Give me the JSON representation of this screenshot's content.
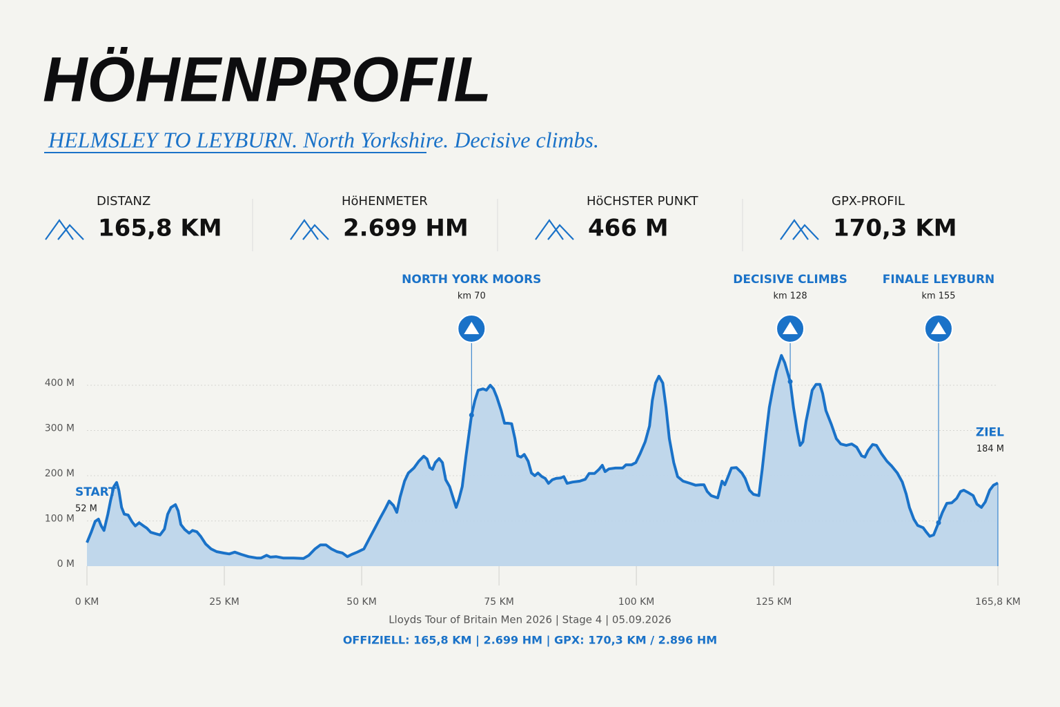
{
  "header": {
    "title": "HÖHENPROFIL",
    "subtitle": "HELMSLEY TO LEYBURN. North Yorkshire. Decisive climbs."
  },
  "stats": [
    {
      "label": "DISTANZ",
      "value": "165,8 KM"
    },
    {
      "label": "HöHENMETER",
      "value": "2.699 HM"
    },
    {
      "label": "HöCHSTER PUNKT",
      "value": "466 M"
    },
    {
      "label": "GPX-PROFIL",
      "value": "170,3 KM"
    }
  ],
  "chart_data": {
    "type": "area",
    "x": [
      0,
      0.8,
      1.5,
      2.1,
      2.6,
      3.1,
      3.8,
      4.3,
      4.9,
      5.4,
      5.8,
      6.3,
      6.8,
      7.5,
      8.2,
      8.8,
      9.5,
      10.3,
      10.9,
      11.6,
      12.4,
      13.3,
      14.1,
      14.7,
      15.3,
      16.1,
      16.6,
      17.1,
      17.8,
      18.6,
      19.2,
      20,
      20.7,
      21.6,
      22.6,
      23.6,
      24.9,
      25.9,
      26.9,
      28.1,
      29.4,
      30.9,
      31.7,
      32.7,
      33.4,
      34.4,
      35.7,
      37.6,
      39.4,
      40.4,
      41.5,
      42.5,
      43.5,
      44.5,
      45.5,
      46.5,
      47.4,
      48.2,
      49.2,
      50.4,
      51.4,
      52.4,
      53.4,
      54.3,
      55,
      55.8,
      56.4,
      57,
      57.8,
      58.5,
      59.5,
      60.4,
      61.3,
      61.9,
      62.4,
      62.9,
      63.4,
      64.1,
      64.7,
      65.3,
      66,
      66.6,
      67.2,
      67.7,
      68.3,
      69,
      70,
      70.6,
      71.2,
      72.1,
      72.7,
      73.4,
      74,
      74.6,
      75.4,
      76,
      76.6,
      77.3,
      77.9,
      78.4,
      79,
      79.6,
      80.3,
      80.9,
      81.5,
      82.1,
      82.8,
      83.4,
      84,
      84.7,
      85.4,
      86.2,
      86.8,
      87.4,
      88.4,
      89.7,
      90.7,
      91.4,
      92.4,
      93.2,
      93.8,
      94.3,
      95,
      96.2,
      97.5,
      98.1,
      99.1,
      99.9,
      100.7,
      101.6,
      102.4,
      102.9,
      103.5,
      104.1,
      104.8,
      105.4,
      106,
      106.8,
      107.5,
      108.5,
      109.8,
      110.8,
      111.7,
      112.3,
      112.9,
      113.6,
      114.8,
      115.6,
      116.1,
      116.7,
      117.3,
      118.2,
      119.2,
      119.8,
      120.6,
      121.3,
      122.3,
      122.9,
      123.6,
      124.2,
      124.9,
      125.5,
      126.4,
      127,
      128,
      128.6,
      129.3,
      129.8,
      130.3,
      130.9,
      131.4,
      132,
      132.7,
      133.4,
      133.9,
      134.5,
      135.5,
      136.4,
      137.2,
      138.2,
      139.2,
      140.1,
      141,
      141.6,
      142.2,
      143,
      143.7,
      144.6,
      145.6,
      146.5,
      147.5,
      148.4,
      149.1,
      149.7,
      150.5,
      151.2,
      152.2,
      152.8,
      153.4,
      154.1,
      155,
      155.7,
      156.5,
      157.4,
      158.3,
      159,
      159.6,
      160.5,
      161.3,
      162,
      162.8,
      163.5,
      164.3,
      165,
      165.8
    ],
    "values": [
      52,
      76,
      99,
      104,
      89,
      79,
      115,
      145,
      176,
      185,
      168,
      130,
      115,
      113,
      98,
      89,
      96,
      89,
      84,
      75,
      72,
      69,
      82,
      115,
      130,
      136,
      122,
      92,
      81,
      73,
      79,
      76,
      66,
      49,
      38,
      32,
      29,
      27,
      31,
      26,
      21,
      18,
      18,
      24,
      20,
      21,
      18,
      18,
      17,
      24,
      38,
      47,
      47,
      38,
      32,
      29,
      21,
      26,
      31,
      38,
      61,
      84,
      107,
      127,
      144,
      134,
      119,
      153,
      188,
      206,
      217,
      232,
      243,
      237,
      218,
      214,
      229,
      238,
      229,
      191,
      176,
      153,
      130,
      148,
      176,
      244,
      334,
      366,
      389,
      392,
      389,
      400,
      392,
      374,
      344,
      316,
      316,
      315,
      282,
      244,
      241,
      247,
      232,
      206,
      200,
      206,
      198,
      194,
      183,
      191,
      194,
      195,
      198,
      183,
      186,
      188,
      192,
      205,
      205,
      214,
      223,
      209,
      215,
      217,
      217,
      224,
      224,
      229,
      249,
      275,
      310,
      366,
      405,
      420,
      405,
      351,
      282,
      229,
      198,
      188,
      183,
      179,
      180,
      180,
      165,
      156,
      151,
      188,
      180,
      198,
      217,
      218,
      206,
      194,
      168,
      159,
      156,
      214,
      290,
      351,
      397,
      431,
      466,
      450,
      408,
      351,
      298,
      267,
      275,
      321,
      351,
      389,
      402,
      402,
      382,
      344,
      313,
      282,
      270,
      267,
      270,
      263,
      244,
      241,
      256,
      269,
      267,
      249,
      232,
      221,
      206,
      186,
      160,
      130,
      104,
      90,
      85,
      75,
      66,
      69,
      96,
      119,
      139,
      140,
      150,
      165,
      168,
      162,
      156,
      137,
      130,
      142,
      168,
      179,
      184
    ],
    "color": "#1a72c8",
    "fill_color": "#bdd5ea",
    "xlim": [
      0,
      165.8
    ],
    "ylim": [
      0,
      500
    ],
    "xticks": [
      {
        "value": 0,
        "label": "0 KM"
      },
      {
        "value": 25,
        "label": "25 KM"
      },
      {
        "value": 50,
        "label": "50 KM"
      },
      {
        "value": 75,
        "label": "75 KM"
      },
      {
        "value": 100,
        "label": "100 KM"
      },
      {
        "value": 125,
        "label": "125 KM"
      },
      {
        "value": 165.8,
        "label": "165,8 KM"
      }
    ],
    "yticks": [
      {
        "value": 0,
        "label": "0 M"
      },
      {
        "value": 100,
        "label": "100 M"
      },
      {
        "value": 200,
        "label": "200 M"
      },
      {
        "value": 300,
        "label": "300 M"
      },
      {
        "value": 400,
        "label": "400 M"
      }
    ],
    "grid": true,
    "annotations": [
      {
        "label": "NORTH YORK MOORS",
        "sublabel": "km 70",
        "x": 70
      },
      {
        "label": "DECISIVE CLIMBS",
        "sublabel": "km 128",
        "x": 128
      },
      {
        "label": "FINALE LEYBURN",
        "sublabel": "km 155",
        "x": 155
      }
    ],
    "start_label": {
      "name": "START",
      "value_label": "52 M"
    },
    "end_label": {
      "name": "ZIEL",
      "value_label": "184 M"
    }
  },
  "footer": {
    "source": "Lloyds Tour of Britain Men 2026 | Stage 4 | 05.09.2026",
    "summary": "OFFIZIELL: 165,8 KM | 2.699 HM | GPX: 170,3 KM / 2.896 HM"
  }
}
